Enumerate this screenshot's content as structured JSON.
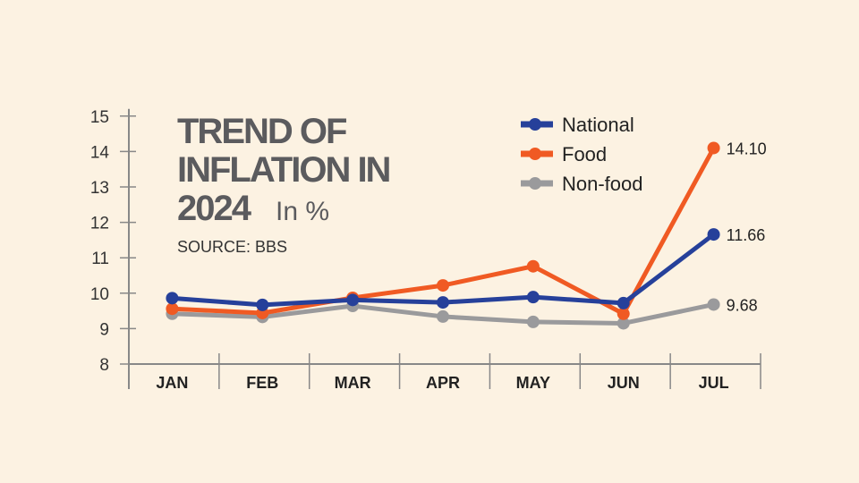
{
  "chart_data": {
    "type": "line",
    "title": [
      "TREND OF",
      "INFLATION IN",
      "2024"
    ],
    "unit": "In %",
    "source": "SOURCE: BBS",
    "categories": [
      "JAN",
      "FEB",
      "MAR",
      "APR",
      "MAY",
      "JUN",
      "JUL"
    ],
    "ylim": [
      8,
      15
    ],
    "yticks": [
      8,
      9,
      10,
      11,
      12,
      13,
      14,
      15
    ],
    "grid": false,
    "legend_position": "top-right",
    "series": [
      {
        "name": "National",
        "color": "#26409a",
        "values": [
          9.86,
          9.67,
          9.81,
          9.74,
          9.89,
          9.72,
          11.66
        ],
        "end_label": "11.66"
      },
      {
        "name": "Food",
        "color": "#f05a23",
        "values": [
          9.56,
          9.44,
          9.87,
          10.22,
          10.76,
          9.42,
          14.1
        ],
        "end_label": "14.10"
      },
      {
        "name": "Non-food",
        "color": "#9a9a9c",
        "values": [
          9.42,
          9.33,
          9.64,
          9.34,
          9.19,
          9.15,
          9.68
        ],
        "end_label": "9.68"
      }
    ]
  }
}
